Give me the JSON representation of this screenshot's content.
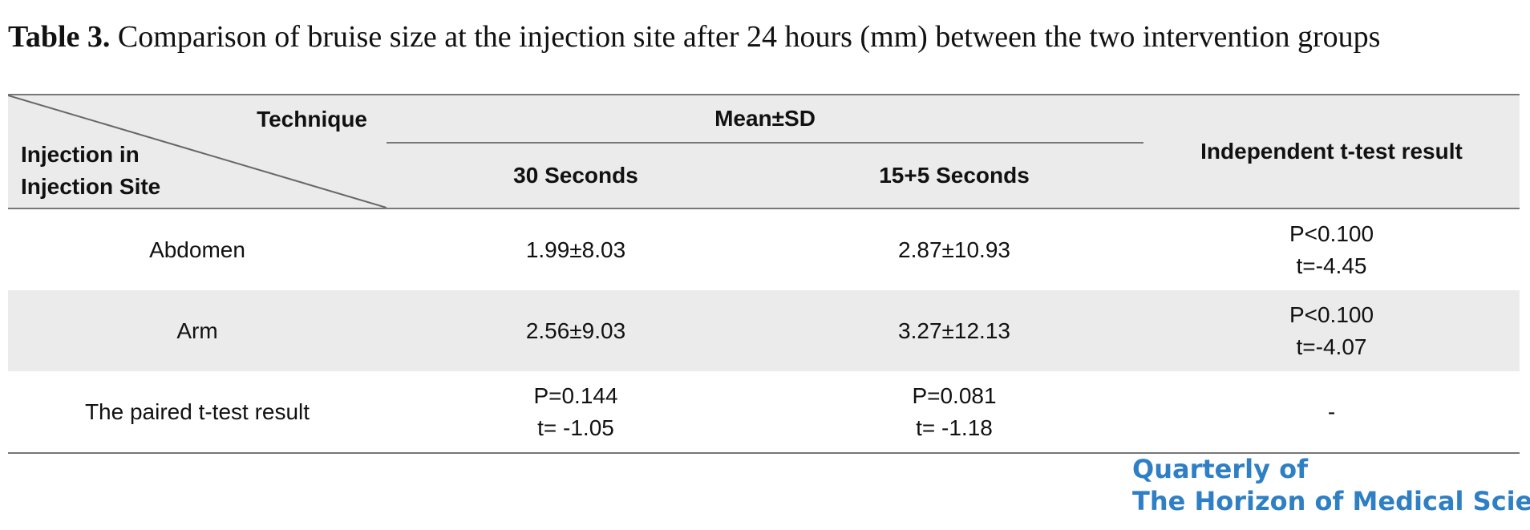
{
  "caption": {
    "label": "Table 3.",
    "text": " Comparison of bruise size at the injection site after 24 hours (mm) between the two intervention groups"
  },
  "table": {
    "corner_top": "Technique",
    "corner_bottom": [
      "Injection in",
      "Injection Site"
    ],
    "group_header": "Mean±SD",
    "sub_headers": [
      "30 Seconds",
      "15+5 Seconds"
    ],
    "last_header": "Independent t-test result",
    "rows": [
      {
        "site": "Abdomen",
        "sec30": "1.99±8.03",
        "sec15_5": "2.87±10.93",
        "result": [
          "P<0.100",
          "t=-4.45"
        ]
      },
      {
        "site": "Arm",
        "sec30": "2.56±9.03",
        "sec15_5": "3.27±12.13",
        "result": [
          "P<0.100",
          "t=-4.07"
        ]
      },
      {
        "site": "The paired t-test result",
        "sec30": [
          "P=0.144",
          "t= -1.05"
        ],
        "sec15_5": [
          "P=0.081",
          "t= -1.18"
        ],
        "result": "-"
      }
    ]
  },
  "logo": {
    "line1": "Quarterly of",
    "line2": "The Horizon of Medical Sciences",
    "color": "#2f7fc4"
  }
}
